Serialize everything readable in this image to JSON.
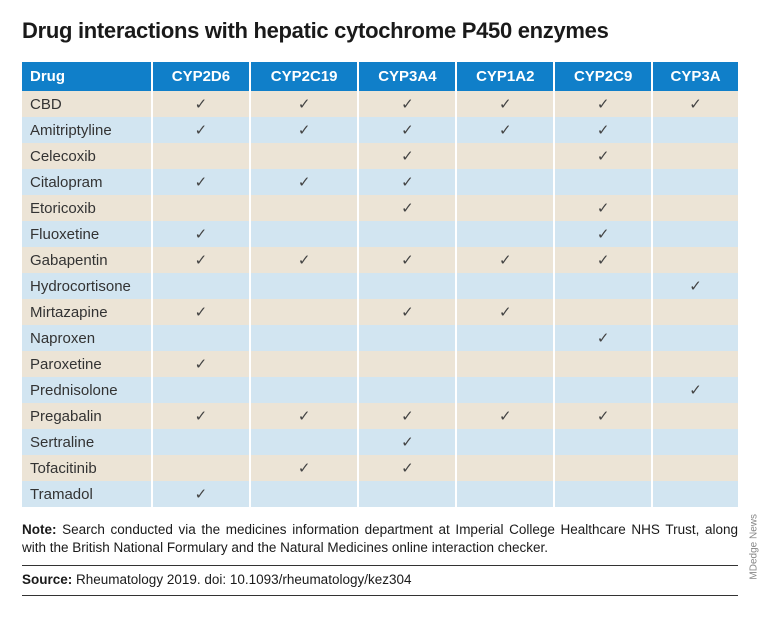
{
  "title": "Drug interactions with hepatic cytochrome P450 enzymes",
  "columns": [
    "Drug",
    "CYP2D6",
    "CYP2C19",
    "CYP3A4",
    "CYP1A2",
    "CYP2C9",
    "CYP3A"
  ],
  "check_mark": "✓",
  "rows": [
    {
      "drug": "CBD",
      "v": [
        1,
        1,
        1,
        1,
        1,
        1
      ]
    },
    {
      "drug": "Amitriptyline",
      "v": [
        1,
        1,
        1,
        1,
        1,
        0
      ]
    },
    {
      "drug": "Celecoxib",
      "v": [
        0,
        0,
        1,
        0,
        1,
        0
      ]
    },
    {
      "drug": "Citalopram",
      "v": [
        1,
        1,
        1,
        0,
        0,
        0
      ]
    },
    {
      "drug": "Etoricoxib",
      "v": [
        0,
        0,
        1,
        0,
        1,
        0
      ]
    },
    {
      "drug": "Fluoxetine",
      "v": [
        1,
        0,
        0,
        0,
        1,
        0
      ]
    },
    {
      "drug": "Gabapentin",
      "v": [
        1,
        1,
        1,
        1,
        1,
        0
      ]
    },
    {
      "drug": "Hydrocortisone",
      "v": [
        0,
        0,
        0,
        0,
        0,
        1
      ]
    },
    {
      "drug": "Mirtazapine",
      "v": [
        1,
        0,
        1,
        1,
        0,
        0
      ]
    },
    {
      "drug": "Naproxen",
      "v": [
        0,
        0,
        0,
        0,
        1,
        0
      ]
    },
    {
      "drug": "Paroxetine",
      "v": [
        1,
        0,
        0,
        0,
        0,
        0
      ]
    },
    {
      "drug": "Prednisolone",
      "v": [
        0,
        0,
        0,
        0,
        0,
        1
      ]
    },
    {
      "drug": "Pregabalin",
      "v": [
        1,
        1,
        1,
        1,
        1,
        0
      ]
    },
    {
      "drug": "Sertraline",
      "v": [
        0,
        0,
        1,
        0,
        0,
        0
      ]
    },
    {
      "drug": "Tofacitinib",
      "v": [
        0,
        1,
        1,
        0,
        0,
        0
      ]
    },
    {
      "drug": "Tramadol",
      "v": [
        1,
        0,
        0,
        0,
        0,
        0
      ]
    }
  ],
  "note_label": "Note:",
  "note_text": " Search conducted via the medicines information department at Imperial College Healthcare NHS Trust, along with the British National Formulary and the Natural Medicines online interaction checker.",
  "source_label": "Source:",
  "source_text": " Rheumatology 2019. doi: 10.1093/rheumatology/kez304",
  "credit": "MDedge News",
  "colors": {
    "header_bg": "#107fc9",
    "row_even": "#ece4d6",
    "row_odd": "#d2e5f1"
  }
}
